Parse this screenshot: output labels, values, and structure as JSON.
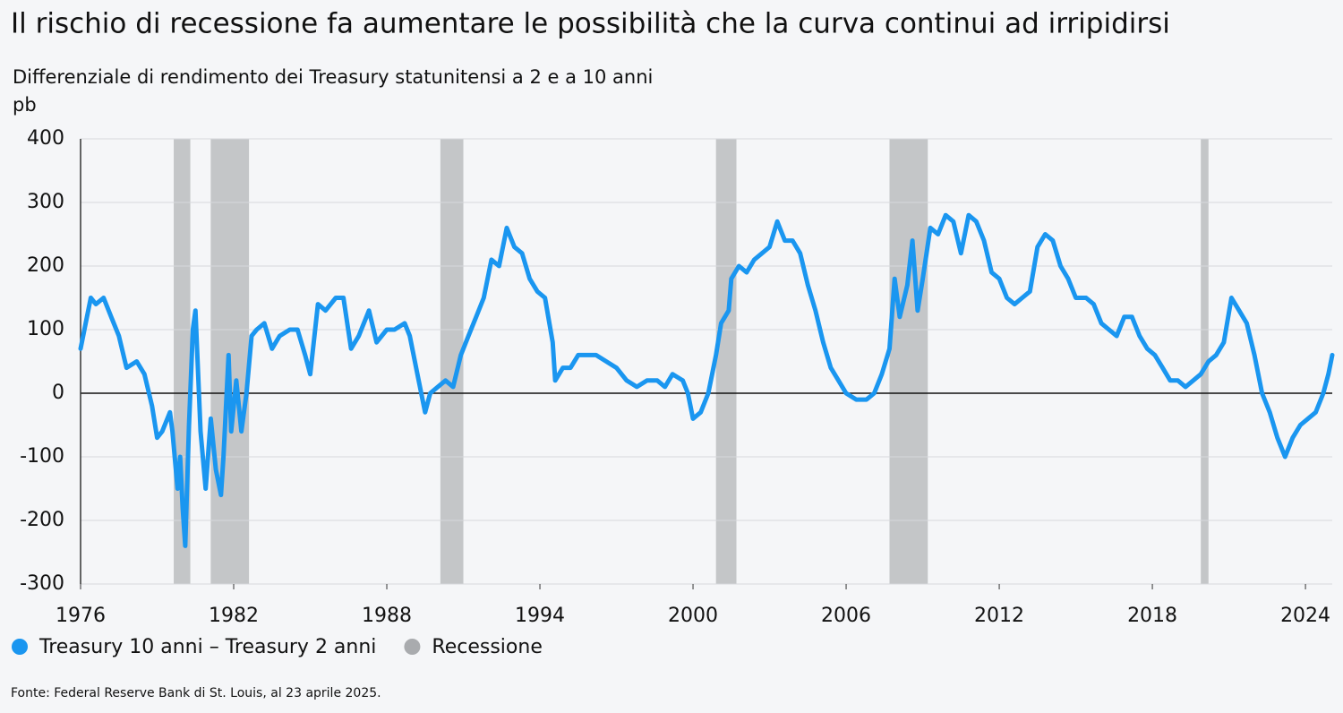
{
  "chart_data": {
    "type": "line",
    "title": "Il rischio di recessione fa aumentare le possibilità che la curva continui ad irripidirsi",
    "subtitle": "Differenziale di rendimento dei Treasury statunitensi a 2 e a 10 anni",
    "y_label": "pb",
    "source": "Fonte: Federal Reserve Bank di St. Louis, al 23 aprile 2025.",
    "x": [
      1976.0,
      1976.2,
      1976.4,
      1976.6,
      1976.9,
      1977.2,
      1977.5,
      1977.8,
      1978.2,
      1978.5,
      1978.8,
      1979.0,
      1979.2,
      1979.5,
      1979.6,
      1979.8,
      1979.9,
      1980.0,
      1980.1,
      1980.25,
      1980.4,
      1980.5,
      1980.7,
      1980.9,
      1981.1,
      1981.3,
      1981.5,
      1981.6,
      1981.8,
      1981.9,
      1982.1,
      1982.3,
      1982.5,
      1982.7,
      1982.9,
      1983.2,
      1983.5,
      1983.8,
      1984.2,
      1984.5,
      1984.8,
      1985.0,
      1985.3,
      1985.6,
      1986.0,
      1986.3,
      1986.6,
      1986.9,
      1987.3,
      1987.6,
      1988.0,
      1988.3,
      1988.7,
      1988.9,
      1989.2,
      1989.5,
      1989.7,
      1990.0,
      1990.3,
      1990.6,
      1990.9,
      1991.2,
      1991.5,
      1991.8,
      1992.1,
      1992.4,
      1992.7,
      1993.0,
      1993.3,
      1993.6,
      1993.9,
      1994.2,
      1994.5,
      1994.6,
      1994.9,
      1995.2,
      1995.5,
      1995.8,
      1996.2,
      1996.6,
      1997.0,
      1997.4,
      1997.8,
      1998.2,
      1998.6,
      1998.9,
      1999.2,
      1999.6,
      1999.8,
      2000.0,
      2000.3,
      2000.6,
      2000.9,
      2001.1,
      2001.4,
      2001.5,
      2001.8,
      2002.1,
      2002.4,
      2002.7,
      2003.0,
      2003.3,
      2003.6,
      2003.9,
      2004.2,
      2004.5,
      2004.8,
      2005.1,
      2005.4,
      2005.7,
      2006.0,
      2006.4,
      2006.8,
      2007.1,
      2007.4,
      2007.7,
      2007.9,
      2008.1,
      2008.4,
      2008.6,
      2008.8,
      2009.0,
      2009.3,
      2009.6,
      2009.9,
      2010.2,
      2010.5,
      2010.8,
      2011.1,
      2011.4,
      2011.7,
      2012.0,
      2012.3,
      2012.6,
      2012.9,
      2013.2,
      2013.5,
      2013.8,
      2014.1,
      2014.4,
      2014.7,
      2015.0,
      2015.4,
      2015.7,
      2016.0,
      2016.3,
      2016.6,
      2016.9,
      2017.2,
      2017.5,
      2017.8,
      2018.1,
      2018.4,
      2018.7,
      2019.0,
      2019.3,
      2019.6,
      2019.9,
      2020.2,
      2020.5,
      2020.8,
      2021.1,
      2021.4,
      2021.7,
      2022.0,
      2022.3,
      2022.6,
      2022.9,
      2023.2,
      2023.5,
      2023.8,
      2024.1,
      2024.4,
      2024.7,
      2024.9,
      2025.05
    ],
    "series": [
      {
        "name": "Treasury 10 anni – Treasury 2 anni",
        "color": "#1a96f0",
        "values": [
          70,
          110,
          150,
          140,
          150,
          120,
          90,
          40,
          50,
          30,
          -20,
          -70,
          -60,
          -30,
          -60,
          -150,
          -100,
          -180,
          -240,
          -50,
          100,
          130,
          -60,
          -150,
          -40,
          -120,
          -160,
          -100,
          60,
          -60,
          20,
          -60,
          0,
          90,
          100,
          110,
          70,
          90,
          100,
          100,
          60,
          30,
          140,
          130,
          150,
          150,
          70,
          90,
          130,
          80,
          100,
          100,
          110,
          90,
          30,
          -30,
          0,
          10,
          20,
          10,
          60,
          90,
          120,
          150,
          210,
          200,
          260,
          230,
          220,
          180,
          160,
          150,
          80,
          20,
          40,
          40,
          60,
          60,
          60,
          50,
          40,
          20,
          10,
          20,
          20,
          10,
          30,
          20,
          0,
          -40,
          -30,
          0,
          60,
          110,
          130,
          180,
          200,
          190,
          210,
          220,
          230,
          270,
          240,
          240,
          220,
          170,
          130,
          80,
          40,
          20,
          0,
          -10,
          -10,
          0,
          30,
          70,
          180,
          120,
          170,
          240,
          130,
          180,
          260,
          250,
          280,
          270,
          220,
          280,
          270,
          240,
          190,
          180,
          150,
          140,
          150,
          160,
          230,
          250,
          240,
          200,
          180,
          150,
          150,
          140,
          110,
          100,
          90,
          120,
          120,
          90,
          70,
          60,
          40,
          20,
          20,
          10,
          20,
          30,
          50,
          60,
          80,
          150,
          130,
          110,
          60,
          0,
          -30,
          -70,
          -100,
          -70,
          -50,
          -40,
          -30,
          0,
          30,
          60
        ]
      }
    ],
    "recessions": {
      "name": "Recessione",
      "color": "#c4c6c8",
      "periods": [
        [
          1979.65,
          1980.3
        ],
        [
          1981.1,
          1982.6
        ],
        [
          1990.1,
          1991.0
        ],
        [
          2000.9,
          2001.7
        ],
        [
          2007.7,
          2009.2
        ],
        [
          2019.9,
          2020.2
        ]
      ]
    },
    "xlim": [
      1976,
      2025.05
    ],
    "ylim": [
      -300,
      400
    ],
    "xticks": [
      1976,
      1982,
      1988,
      1994,
      2000,
      2006,
      2012,
      2018,
      2024
    ],
    "yticks": [
      -300,
      -200,
      -100,
      0,
      100,
      200,
      300,
      400
    ],
    "grid": true
  }
}
